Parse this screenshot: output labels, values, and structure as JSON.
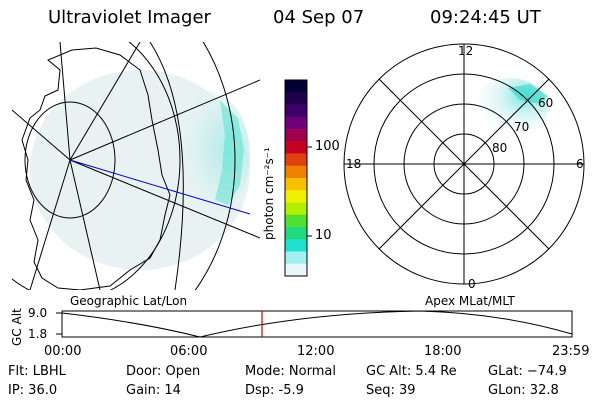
{
  "header": {
    "title": "Ultraviolet Imager",
    "date": "04 Sep 07",
    "time": "09:24:45 UT"
  },
  "left_panel": {
    "label": "Geographic Lat/Lon"
  },
  "right_panel": {
    "label": "Apex MLat/MLT",
    "mlt_labels": {
      "top": "12",
      "left": "18",
      "right": "6",
      "bottom": "0"
    },
    "lat_labels": [
      "60",
      "70",
      "80"
    ]
  },
  "colorbar": {
    "unit_label": "photon cm⁻²s⁻¹",
    "ticks": [
      "100",
      "10"
    ],
    "colors": [
      "#000033",
      "#20004a",
      "#40006a",
      "#70007a",
      "#a00050",
      "#c80020",
      "#e04010",
      "#f08000",
      "#f8c000",
      "#f0f000",
      "#b0f000",
      "#50e030",
      "#20d880",
      "#20e0d0",
      "#a0f0f0",
      "#e8f8f8"
    ]
  },
  "altitude_plot": {
    "ylabel": "GC Alt",
    "yticks": [
      "9.0",
      "1.8"
    ],
    "xticks": [
      "00:00",
      "06:00",
      "12:00",
      "18:00",
      "23:59"
    ],
    "current_marker_time": "09:24:45",
    "marker_color": "#cc0000"
  },
  "footer": {
    "filter": "Flt: LBHL",
    "ip": "IP: 36.0",
    "door": "Door: Open",
    "gain": "Gain: 14",
    "mode": "Mode: Normal",
    "dsp": "Dsp:    -5.9",
    "gc_alt": "GC Alt: 5.4 Re",
    "seq": "Seq: 39",
    "glat": "GLat: −74.9",
    "glon": "GLon:  32.8"
  }
}
